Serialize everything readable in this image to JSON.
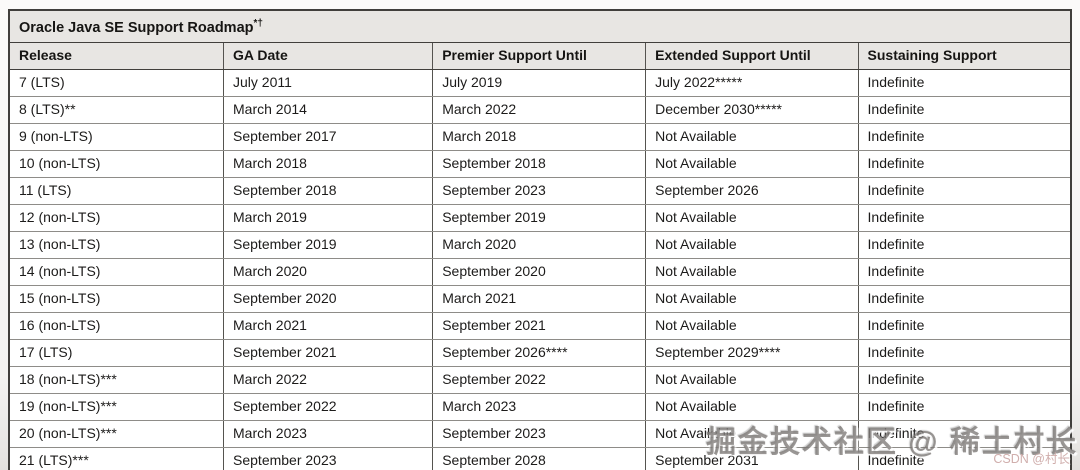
{
  "chart_data": {
    "type": "table",
    "title": "Oracle Java SE Support Roadmap",
    "title_superscript": "*†",
    "columns": [
      "Release",
      "GA Date",
      "Premier Support Until",
      "Extended Support Until",
      "Sustaining Support"
    ],
    "rows": [
      [
        "7 (LTS)",
        "July 2011",
        "July 2019",
        "July 2022*****",
        "Indefinite"
      ],
      [
        "8 (LTS)**",
        "March 2014",
        "March 2022",
        "December 2030*****",
        "Indefinite"
      ],
      [
        "9 (non-LTS)",
        "September 2017",
        "March 2018",
        "Not Available",
        "Indefinite"
      ],
      [
        "10 (non-LTS)",
        "March 2018",
        "September 2018",
        "Not Available",
        "Indefinite"
      ],
      [
        "11 (LTS)",
        "September 2018",
        "September 2023",
        "September 2026",
        "Indefinite"
      ],
      [
        "12 (non-LTS)",
        "March 2019",
        "September 2019",
        "Not Available",
        "Indefinite"
      ],
      [
        "13 (non-LTS)",
        "September 2019",
        "March 2020",
        "Not Available",
        "Indefinite"
      ],
      [
        "14 (non-LTS)",
        "March 2020",
        "September 2020",
        "Not Available",
        "Indefinite"
      ],
      [
        "15 (non-LTS)",
        "September 2020",
        "March 2021",
        "Not Available",
        "Indefinite"
      ],
      [
        "16 (non-LTS)",
        "March 2021",
        "September 2021",
        "Not Available",
        "Indefinite"
      ],
      [
        "17 (LTS)",
        "September 2021",
        "September 2026****",
        "September 2029****",
        "Indefinite"
      ],
      [
        "18 (non-LTS)***",
        "March 2022",
        "September 2022",
        "Not Available",
        "Indefinite"
      ],
      [
        "19 (non-LTS)***",
        "September 2022",
        "March 2023",
        "Not Available",
        "Indefinite"
      ],
      [
        "20 (non-LTS)***",
        "March 2023",
        "September 2023",
        "Not Available",
        "Indefinite"
      ],
      [
        "21 (LTS)***",
        "September 2023",
        "September 2028",
        "September 2031",
        "Indefinite"
      ]
    ],
    "layout_hints": {
      "header_background": "#e8e6e3",
      "body_background": "#ffffff",
      "text_color": "#161513",
      "outer_border_color": "#413f3c",
      "inner_border_color": "#8e8c88",
      "grid": "on"
    }
  },
  "watermark": {
    "main": "掘金技术社区 @ 稀土村长",
    "sub": "CSDN @村长"
  }
}
